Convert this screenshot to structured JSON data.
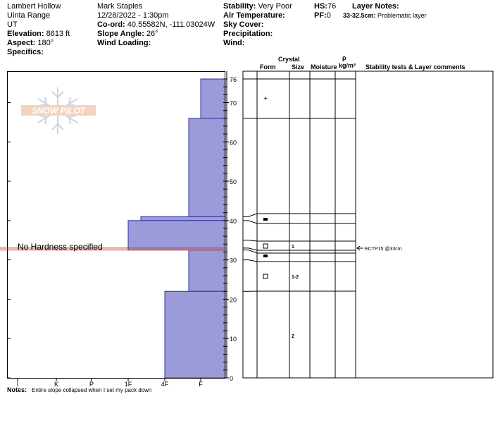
{
  "header": {
    "location": "Lambert Hollow",
    "range": "Uinta Range",
    "state": "UT",
    "elevation_label": "Elevation:",
    "elevation": "8613 ft",
    "aspect_label": "Aspect:",
    "aspect": "180°",
    "specifics_label": "Specifics:",
    "observer": "Mark Staples",
    "datetime": "12/28/2022 - 1:30pm",
    "coord_label": "Co-ord:",
    "coord": "40.55582N, -111.03024W",
    "slope_label": "Slope Angle:",
    "slope": "26°",
    "wind_loading_label": "Wind Loading:",
    "stability_label": "Stability:",
    "stability": "Very Poor",
    "air_temp_label": "Air Temperature:",
    "sky_cover_label": "Sky Cover:",
    "precip_label": "Precipitation:",
    "wind_label": "Wind:",
    "hs_label": "HS:",
    "hs": "76",
    "pf_label": "PF:",
    "pf": "0",
    "layer_notes_label": "Layer Notes:",
    "layer_note_range": "33-32.5cm:",
    "layer_note_text": "Problematic layer"
  },
  "columns": {
    "crystal": "Crystal",
    "form": "Form",
    "size": "Size",
    "moisture": "Moisture",
    "rho": "ρ",
    "density_unit": "kg/m³",
    "stability_comments": "Stability tests & Layer comments"
  },
  "logo_text": "SNOW PILOT",
  "no_hardness": "No Hardness specified",
  "notes_label": "Notes:",
  "notes": "Entire slope collapsed when I set my pack down",
  "stability_test": "ECTP15 @33cm",
  "colors": {
    "hardness_fill": "#9c9bd9",
    "hardness_stroke": "#2f2f9e",
    "marker_line": "#c0392b"
  },
  "chart_data": {
    "type": "bar",
    "orientation": "horizontal-profile",
    "x_categories": [
      "I",
      "K",
      "P",
      "1F",
      "4F",
      "F"
    ],
    "y_ticks": [
      0,
      10,
      20,
      30,
      40,
      50,
      60,
      70,
      76
    ],
    "ylim": [
      0,
      76
    ],
    "layers": [
      {
        "top": 76,
        "bottom": 66,
        "hardness": "F"
      },
      {
        "top": 66,
        "bottom": 41,
        "hardness": "F+"
      },
      {
        "top": 41,
        "bottom": 40,
        "hardness": "1F-"
      },
      {
        "top": 40,
        "bottom": 32.5,
        "hardness": "1F"
      },
      {
        "top": 32.5,
        "bottom": 22,
        "hardness": "F+"
      },
      {
        "top": 22,
        "bottom": 0,
        "hardness": "4F"
      }
    ],
    "no_hardness_layer": {
      "top": 33,
      "bottom": 32.5
    },
    "grain_form_symbols": [
      {
        "depth": 71,
        "symbol": "+"
      },
      {
        "depth": 40.3,
        "symbol": "▬"
      },
      {
        "depth": 33.8,
        "symbol": "□"
      },
      {
        "depth": 31.6,
        "symbol": "▬"
      },
      {
        "depth": 26,
        "symbol": "□"
      }
    ],
    "grain_sizes": [
      {
        "depth": 33.8,
        "size": "1"
      },
      {
        "depth": 26,
        "size": "1-2"
      },
      {
        "depth": 11,
        "size": "2"
      }
    ],
    "stability_test": {
      "depth": 33,
      "result": "ECTP15"
    }
  }
}
